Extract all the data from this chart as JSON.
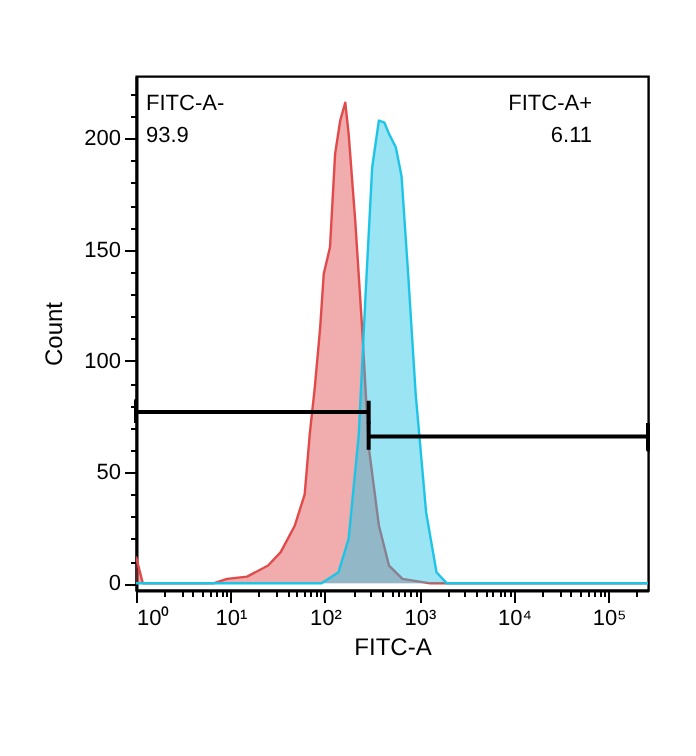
{
  "chart_data": {
    "type": "area",
    "xlabel": "FITC-A",
    "ylabel": "Count",
    "log": "x",
    "grid": false,
    "xlim": [
      1,
      262144
    ],
    "ylim": [
      -3,
      228
    ],
    "xticks": [
      {
        "value": 1,
        "label": "10⁰"
      },
      {
        "value": 2,
        "label": null
      },
      {
        "value": 3,
        "label": null
      },
      {
        "value": 4,
        "label": null
      },
      {
        "value": 5,
        "label": null
      },
      {
        "value": 6,
        "label": null
      },
      {
        "value": 7,
        "label": null
      },
      {
        "value": 8,
        "label": null
      },
      {
        "value": 9,
        "label": null
      },
      {
        "value": 10,
        "label": "10¹"
      },
      {
        "value": 20,
        "label": null
      },
      {
        "value": 30,
        "label": null
      },
      {
        "value": 40,
        "label": null
      },
      {
        "value": 50,
        "label": null
      },
      {
        "value": 60,
        "label": null
      },
      {
        "value": 70,
        "label": null
      },
      {
        "value": 80,
        "label": null
      },
      {
        "value": 90,
        "label": null
      },
      {
        "value": 100,
        "label": "10²"
      },
      {
        "value": 200,
        "label": null
      },
      {
        "value": 300,
        "label": null
      },
      {
        "value": 400,
        "label": null
      },
      {
        "value": 500,
        "label": null
      },
      {
        "value": 600,
        "label": null
      },
      {
        "value": 700,
        "label": null
      },
      {
        "value": 800,
        "label": null
      },
      {
        "value": 900,
        "label": null
      },
      {
        "value": 1000,
        "label": "10³"
      },
      {
        "value": 2000,
        "label": null
      },
      {
        "value": 3000,
        "label": null
      },
      {
        "value": 4000,
        "label": null
      },
      {
        "value": 5000,
        "label": null
      },
      {
        "value": 6000,
        "label": null
      },
      {
        "value": 7000,
        "label": null
      },
      {
        "value": 8000,
        "label": null
      },
      {
        "value": 9000,
        "label": null
      },
      {
        "value": 10000,
        "label": "10⁴"
      },
      {
        "value": 20000,
        "label": null
      },
      {
        "value": 30000,
        "label": null
      },
      {
        "value": 40000,
        "label": null
      },
      {
        "value": 50000,
        "label": null
      },
      {
        "value": 60000,
        "label": null
      },
      {
        "value": 70000,
        "label": null
      },
      {
        "value": 80000,
        "label": null
      },
      {
        "value": 90000,
        "label": null
      },
      {
        "value": 100000,
        "label": "10⁵"
      },
      {
        "value": 200000,
        "label": null
      }
    ],
    "yticks": [
      0,
      {
        "value": 10,
        "label": null
      },
      {
        "value": 20,
        "label": null
      },
      {
        "value": 30,
        "label": null
      },
      {
        "value": 40,
        "label": null
      },
      50,
      {
        "value": 60,
        "label": null
      },
      {
        "value": 70,
        "label": null
      },
      {
        "value": 80,
        "label": null
      },
      {
        "value": 90,
        "label": null
      },
      100,
      {
        "value": 110,
        "label": null
      },
      {
        "value": 120,
        "label": null
      },
      {
        "value": 130,
        "label": null
      },
      {
        "value": 140,
        "label": null
      },
      150,
      {
        "value": 160,
        "label": null
      },
      {
        "value": 170,
        "label": null
      },
      {
        "value": 180,
        "label": null
      },
      {
        "value": 190,
        "label": null
      },
      200,
      {
        "value": 210,
        "label": null
      },
      {
        "value": 220,
        "label": null
      }
    ],
    "series": [
      {
        "color": "#e04a4a",
        "x": [
          1,
          1.18,
          6.6,
          9.2,
          15,
          25,
          34,
          48,
          61,
          69,
          78,
          89,
          97,
          113,
          128,
          145,
          164,
          178,
          209,
          247,
          291,
          372,
          476,
          661,
          1300,
          262144
        ],
        "values": [
          12,
          0,
          0,
          2,
          3,
          8,
          14,
          26,
          40,
          67,
          88,
          115,
          139,
          151,
          193,
          208,
          216,
          202,
          163,
          115,
          61,
          26,
          8,
          2,
          0,
          0
        ]
      },
      {
        "color": "#1ec4e6",
        "x": [
          1,
          92,
          139,
          178,
          228,
          269,
          316,
          372,
          426,
          476,
          562,
          646,
          759,
          912,
          1175,
          1514,
          1950,
          262144
        ],
        "values": [
          0,
          0,
          5,
          20,
          67,
          130,
          187,
          208,
          207,
          202,
          196,
          183,
          139,
          85,
          32,
          5,
          0,
          0
        ]
      },
      {
        "type": "line",
        "color": "#000000",
        "x": [
          1,
          1,
          1,
          290,
          290,
          290
        ],
        "values": [
          72,
          82,
          77,
          77,
          72,
          82
        ]
      },
      {
        "type": "line",
        "color": "#000000",
        "x": [
          290,
          290,
          290,
          262144,
          262144,
          262144
        ],
        "values": [
          60,
          72,
          66,
          66,
          60,
          72
        ]
      }
    ],
    "annotations": [
      "FITC-A-",
      "93.9",
      "FITC-A+",
      "6.11"
    ]
  }
}
